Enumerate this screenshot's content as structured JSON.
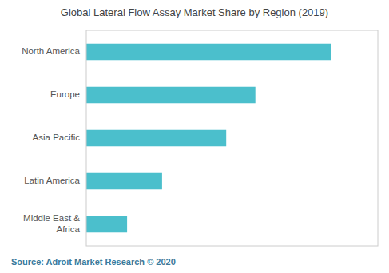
{
  "chart_data": {
    "type": "bar",
    "orientation": "horizontal",
    "title": "Global Lateral Flow Assay Market Share by Region (2019)",
    "annotations": [
      "Source: Adroit Market Research © 2020"
    ],
    "categories": [
      "North America",
      "Europe",
      "Asia Pacific",
      "Latin America",
      "Middle East &\n  Africa"
    ],
    "values": [
      42,
      29,
      24,
      13,
      7
    ],
    "color": "#4bbfcc",
    "xlim": [
      0,
      50
    ],
    "grid": false,
    "tick_labels": "y"
  }
}
